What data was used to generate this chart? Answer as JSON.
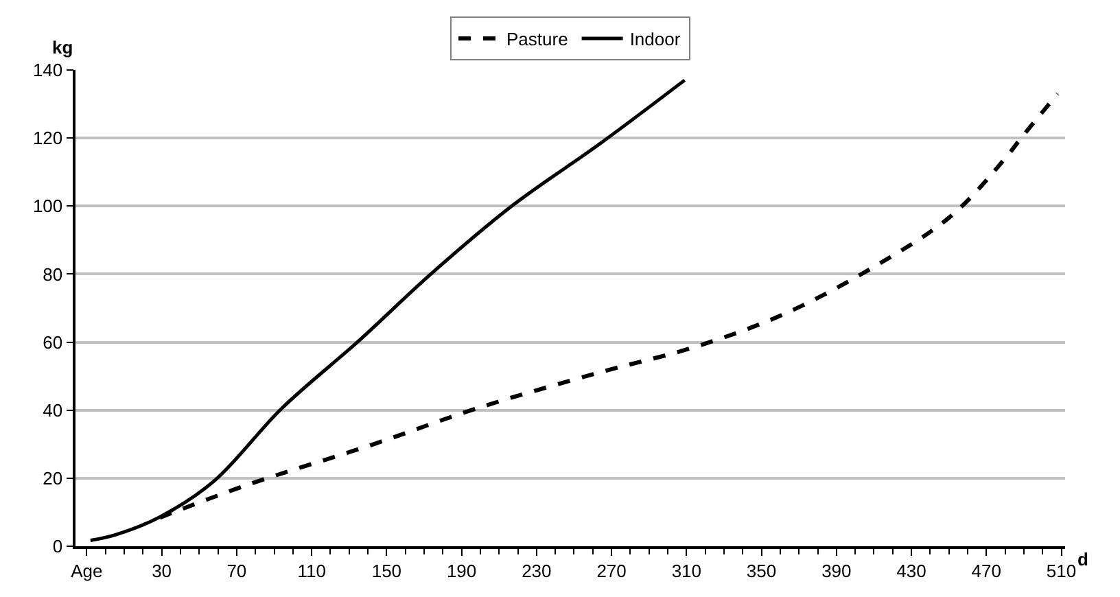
{
  "chart_data": {
    "type": "line",
    "xlabel": "d",
    "ylabel": "kg",
    "xlim": [
      -16,
      512
    ],
    "xticks": [
      {
        "value": -10,
        "label": "Age"
      },
      30,
      70,
      110,
      150,
      190,
      230,
      270,
      310,
      350,
      390,
      430,
      470,
      510
    ],
    "ylim": [
      0,
      140
    ],
    "yticks": [
      0,
      20,
      40,
      60,
      80,
      100,
      120,
      140
    ],
    "grid": "y",
    "legend": "top",
    "marker": "none",
    "series": [
      {
        "name": "Pasture",
        "color": "#000000",
        "line_style": "dashed",
        "x": [
          29,
          75,
          142,
          198,
          263,
          314,
          361,
          408,
          451,
          480,
          489,
          508
        ],
        "values": [
          8.4,
          17.9,
          29.8,
          40.5,
          51,
          58.5,
          68,
          81.5,
          97,
          114,
          120.3,
          133
        ]
      },
      {
        "name": "Indoor",
        "color": "#000000",
        "line_style": "solid",
        "x": [
          -8,
          5,
          29,
          58,
          94,
          135,
          174,
          217,
          263,
          309
        ],
        "values": [
          1.7,
          3.3,
          8.6,
          19.2,
          40.5,
          60.3,
          80.2,
          100.1,
          118,
          137
        ]
      }
    ]
  }
}
